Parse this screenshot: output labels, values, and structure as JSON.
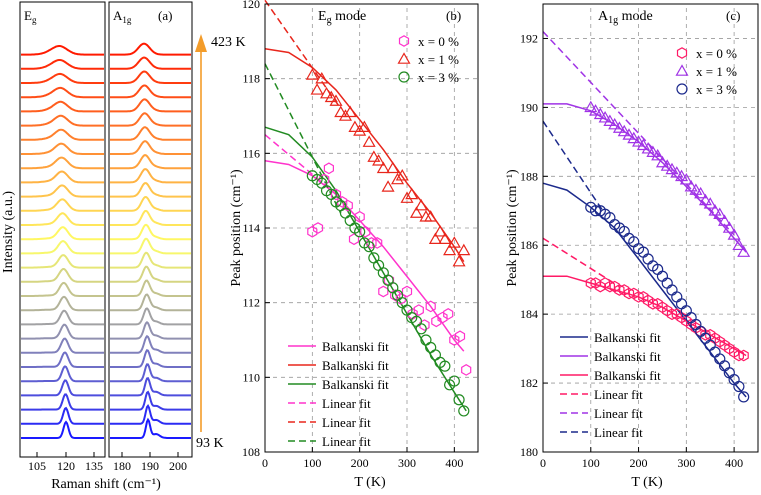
{
  "panel_a": {
    "ylabel": "Intensity (a.u.)",
    "xlabel": "Raman shift (cm⁻¹)",
    "left_label": "E",
    "left_label_sub": "g",
    "right_label": "A",
    "right_label_sub": "1g",
    "tag": "(a)",
    "temp_top": "423 K",
    "temp_bottom": "93 K",
    "left_ticks": [
      "105",
      "120",
      "135"
    ],
    "right_ticks": [
      "180",
      "190",
      "200"
    ],
    "spectra_count": 28,
    "color_cold": "#1a1aff",
    "color_mid": "#ffff66",
    "color_hot": "#ff1a00",
    "arrow_color": "#f39c2a"
  },
  "chart_data": [
    {
      "type": "scatter",
      "panel": "b",
      "title_main": "E",
      "title_sub": "g",
      "title_rest": " mode",
      "tag": "(b)",
      "xlabel": "T (K)",
      "ylabel": "Peak position (cm⁻¹)",
      "xlim": [
        0,
        450
      ],
      "ylim": [
        108,
        120
      ],
      "xticks": [
        0,
        100,
        200,
        300,
        400
      ],
      "yticks": [
        108,
        110,
        112,
        114,
        116,
        118,
        120
      ],
      "grid": true,
      "series": [
        {
          "name": "x = 0 %",
          "marker": "hexagon",
          "color": "#ff33cc",
          "x": [
            100,
            112,
            125,
            135,
            150,
            163,
            175,
            188,
            200,
            212,
            225,
            237,
            250,
            262,
            275,
            287,
            300,
            312,
            325,
            337,
            350,
            362,
            375,
            387,
            400,
            412,
            425
          ],
          "y": [
            113.9,
            114.0,
            115.3,
            115.6,
            114.9,
            114.7,
            114.6,
            113.7,
            114.3,
            113.9,
            113.6,
            113.6,
            112.3,
            112.6,
            112.2,
            112.1,
            112.3,
            111.7,
            111.8,
            111.4,
            111.9,
            111.5,
            111.6,
            111.7,
            111.0,
            111.1,
            110.2
          ]
        },
        {
          "name": "x = 1 %",
          "marker": "triangle",
          "color": "#e8261c",
          "x": [
            100,
            110,
            120,
            130,
            140,
            150,
            160,
            170,
            180,
            190,
            200,
            210,
            220,
            230,
            240,
            250,
            260,
            270,
            280,
            290,
            300,
            310,
            320,
            330,
            340,
            350,
            360,
            370,
            380,
            390,
            400,
            410,
            420
          ],
          "y": [
            118.1,
            117.7,
            118.0,
            117.6,
            117.5,
            117.4,
            117.1,
            117.0,
            117.1,
            116.7,
            116.6,
            116.7,
            116.3,
            115.9,
            115.8,
            115.6,
            115.1,
            115.6,
            115.3,
            115.4,
            114.8,
            114.9,
            114.4,
            114.6,
            114.3,
            114.3,
            113.7,
            113.9,
            113.7,
            113.4,
            113.6,
            113.1,
            113.4
          ]
        },
        {
          "name": "x = 3 %",
          "marker": "circle",
          "color": "#228b22",
          "x": [
            100,
            110,
            120,
            130,
            140,
            150,
            160,
            170,
            180,
            190,
            200,
            210,
            220,
            230,
            240,
            250,
            260,
            270,
            280,
            290,
            300,
            310,
            320,
            330,
            340,
            350,
            360,
            370,
            380,
            390,
            400,
            410,
            420
          ],
          "y": [
            115.4,
            115.3,
            115.2,
            115.0,
            114.9,
            114.7,
            114.6,
            114.4,
            114.2,
            114.0,
            113.9,
            113.6,
            113.5,
            113.2,
            113.0,
            112.8,
            112.6,
            112.4,
            112.2,
            112.0,
            111.8,
            111.6,
            111.5,
            111.3,
            111.0,
            110.8,
            110.6,
            110.4,
            110.3,
            109.8,
            109.9,
            109.4,
            109.1
          ]
        }
      ],
      "fits": [
        {
          "label": "Balkanski fit",
          "style": "solid",
          "color": "#ff33cc",
          "x": [
            0,
            50,
            100,
            150,
            200,
            250,
            300,
            350,
            400,
            420
          ],
          "y": [
            115.8,
            115.7,
            115.4,
            114.9,
            114.2,
            113.5,
            112.7,
            111.9,
            111.0,
            110.7
          ]
        },
        {
          "label": "Balkanski fit",
          "style": "solid",
          "color": "#e8261c",
          "x": [
            0,
            50,
            100,
            150,
            200,
            250,
            300,
            350,
            400,
            420
          ],
          "y": [
            118.8,
            118.7,
            118.3,
            117.7,
            116.9,
            116.1,
            115.2,
            114.4,
            113.5,
            113.1
          ]
        },
        {
          "label": "Balkanski fit",
          "style": "solid",
          "color": "#228b22",
          "x": [
            0,
            50,
            100,
            150,
            200,
            250,
            300,
            350,
            400,
            425
          ],
          "y": [
            116.7,
            116.5,
            115.9,
            115.0,
            113.9,
            112.8,
            111.7,
            110.6,
            109.6,
            109.1
          ]
        },
        {
          "label": "Linear fit",
          "style": "dashed",
          "color": "#ff33cc",
          "x": [
            0,
            160
          ],
          "y": [
            116.5,
            114.8
          ]
        },
        {
          "label": "Linear fit",
          "style": "dashed",
          "color": "#e8261c",
          "x": [
            0,
            160
          ],
          "y": [
            120.1,
            117.2
          ]
        },
        {
          "label": "Linear fit",
          "style": "dashed",
          "color": "#228b22",
          "x": [
            0,
            160
          ],
          "y": [
            118.4,
            114.4
          ]
        }
      ]
    },
    {
      "type": "scatter",
      "panel": "c",
      "title_main": "A",
      "title_sub": "1g",
      "title_rest": " mode",
      "tag": "(c)",
      "xlabel": "T (K)",
      "ylabel": "Peak position (cm⁻¹)",
      "xlim": [
        0,
        450
      ],
      "ylim": [
        180,
        193
      ],
      "xticks": [
        0,
        100,
        200,
        300,
        400
      ],
      "yticks": [
        180,
        182,
        184,
        186,
        188,
        190,
        192
      ],
      "grid": true,
      "series": [
        {
          "name": "x = 0 %",
          "marker": "hexagon",
          "color": "#ff1a66",
          "x": [
            100,
            110,
            120,
            130,
            140,
            150,
            160,
            170,
            180,
            190,
            200,
            210,
            220,
            230,
            240,
            250,
            260,
            270,
            280,
            290,
            300,
            310,
            320,
            330,
            340,
            350,
            360,
            370,
            380,
            390,
            400,
            410,
            420
          ],
          "y": [
            184.9,
            184.9,
            184.8,
            184.9,
            184.8,
            184.8,
            184.7,
            184.7,
            184.6,
            184.6,
            184.5,
            184.5,
            184.4,
            184.3,
            184.3,
            184.2,
            184.1,
            184.0,
            184.0,
            183.9,
            183.8,
            183.7,
            183.6,
            183.5,
            183.4,
            183.4,
            183.3,
            183.2,
            183.1,
            183.0,
            182.9,
            182.8,
            182.8
          ]
        },
        {
          "name": "x = 1 %",
          "marker": "triangle",
          "color": "#a033e6",
          "x": [
            100,
            110,
            120,
            130,
            140,
            150,
            160,
            170,
            180,
            190,
            200,
            210,
            220,
            230,
            240,
            250,
            260,
            270,
            280,
            290,
            300,
            310,
            320,
            330,
            340,
            350,
            360,
            370,
            380,
            390,
            400,
            410,
            420
          ],
          "y": [
            190.0,
            189.9,
            189.8,
            189.7,
            189.6,
            189.5,
            189.4,
            189.3,
            189.2,
            189.1,
            189.0,
            188.9,
            188.8,
            188.7,
            188.6,
            188.4,
            188.3,
            188.2,
            188.1,
            188.0,
            187.9,
            187.7,
            187.6,
            187.5,
            187.3,
            187.2,
            187.0,
            186.9,
            186.7,
            186.5,
            186.3,
            186.0,
            185.8
          ]
        },
        {
          "name": "x = 3 %",
          "marker": "circle",
          "color": "#1c2a8c",
          "x": [
            100,
            110,
            120,
            130,
            140,
            150,
            160,
            170,
            180,
            190,
            200,
            210,
            220,
            230,
            240,
            250,
            260,
            270,
            280,
            290,
            300,
            310,
            320,
            330,
            340,
            350,
            360,
            370,
            380,
            390,
            400,
            410,
            420
          ],
          "y": [
            187.1,
            187.0,
            187.0,
            186.9,
            186.8,
            186.6,
            186.5,
            186.4,
            186.2,
            186.1,
            185.9,
            185.8,
            185.6,
            185.4,
            185.3,
            185.1,
            184.9,
            184.7,
            184.5,
            184.3,
            184.1,
            183.9,
            183.7,
            183.5,
            183.3,
            183.1,
            182.9,
            182.7,
            182.5,
            182.3,
            182.1,
            181.9,
            181.6
          ]
        }
      ],
      "fits": [
        {
          "label": "Balkanski fit",
          "style": "solid",
          "color": "#1c2a8c",
          "x": [
            0,
            50,
            100,
            150,
            200,
            250,
            300,
            350,
            400,
            425
          ],
          "y": [
            187.8,
            187.6,
            187.1,
            186.5,
            185.6,
            184.7,
            183.8,
            182.9,
            182.0,
            181.6
          ]
        },
        {
          "label": "Balkanski fit",
          "style": "solid",
          "color": "#a033e6",
          "x": [
            0,
            50,
            100,
            150,
            200,
            250,
            300,
            350,
            400,
            425
          ],
          "y": [
            190.1,
            190.1,
            189.9,
            189.5,
            189.0,
            188.4,
            187.7,
            187.0,
            186.2,
            185.8
          ]
        },
        {
          "label": "Balkanski fit",
          "style": "solid",
          "color": "#ff1a66",
          "x": [
            0,
            50,
            100,
            150,
            200,
            250,
            300,
            350,
            400,
            425
          ],
          "y": [
            185.1,
            185.1,
            184.9,
            184.7,
            184.5,
            184.2,
            183.8,
            183.4,
            183.0,
            182.8
          ]
        },
        {
          "label": "Linear fit",
          "style": "dashed",
          "color": "#ff1a66",
          "x": [
            0,
            160
          ],
          "y": [
            186.2,
            184.8
          ]
        },
        {
          "label": "Linear fit",
          "style": "dashed",
          "color": "#a033e6",
          "x": [
            0,
            400
          ],
          "y": [
            192.2,
            186.3
          ]
        },
        {
          "label": "Linear fit",
          "style": "dashed",
          "color": "#1c2a8c",
          "x": [
            0,
            130
          ],
          "y": [
            189.6,
            186.9
          ]
        }
      ]
    }
  ]
}
